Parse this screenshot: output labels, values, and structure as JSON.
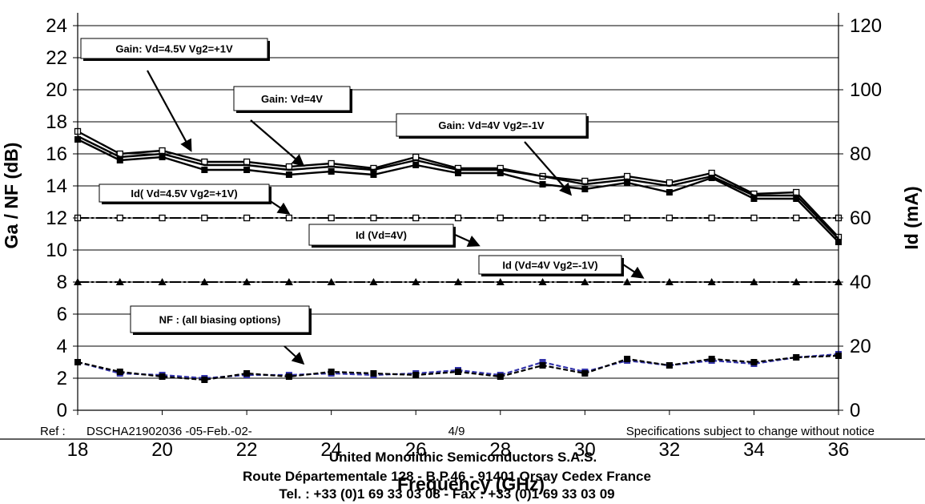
{
  "chart_data": {
    "type": "line",
    "xlabel": "Frequency (GHz)",
    "ylabel": "Ga / NF (dB)",
    "y2label": "Id (mA)",
    "xlim": [
      18,
      36
    ],
    "ylim": [
      0,
      24
    ],
    "y2lim": [
      0,
      120
    ],
    "x_ticks": [
      "18",
      "20",
      "22",
      "24",
      "26",
      "28",
      "30",
      "32",
      "34",
      "36"
    ],
    "y_ticks": [
      "0",
      "2",
      "4",
      "6",
      "8",
      "10",
      "12",
      "14",
      "16",
      "18",
      "20",
      "22",
      "24"
    ],
    "y2_ticks": [
      "0",
      "20",
      "40",
      "60",
      "80",
      "100",
      "120"
    ],
    "grid": "horizontal",
    "x": [
      18,
      19,
      20,
      21,
      22,
      23,
      24,
      25,
      26,
      27,
      28,
      29,
      30,
      31,
      32,
      33,
      34,
      35,
      36
    ],
    "series": [
      {
        "axis": "left",
        "color": "#000000",
        "marker": "open-square",
        "values": [
          17.4,
          16.0,
          16.2,
          15.5,
          15.5,
          15.2,
          15.4,
          15.1,
          15.8,
          15.1,
          15.1,
          14.6,
          14.3,
          14.6,
          14.2,
          14.8,
          13.5,
          13.6,
          10.8
        ]
      },
      {
        "axis": "left",
        "color": "#000000",
        "marker": "none",
        "values": [
          17.1,
          15.8,
          16.0,
          15.3,
          15.3,
          15.0,
          15.2,
          15.0,
          15.6,
          15.0,
          15.0,
          14.6,
          14.1,
          14.4,
          14.0,
          14.6,
          13.4,
          13.4,
          10.7
        ]
      },
      {
        "axis": "left",
        "color": "#000000",
        "marker": "filled-square",
        "values": [
          16.9,
          15.6,
          15.8,
          15.0,
          15.0,
          14.7,
          14.9,
          14.7,
          15.3,
          14.8,
          14.8,
          14.1,
          13.8,
          14.2,
          13.6,
          14.5,
          13.2,
          13.2,
          10.5
        ]
      },
      {
        "axis": "right",
        "color": "#000000",
        "marker": "open-square",
        "values": [
          60,
          60,
          60,
          60,
          60,
          60,
          60,
          60,
          60,
          60,
          60,
          60,
          60,
          60,
          60,
          60,
          60,
          60,
          60
        ]
      },
      {
        "axis": "right",
        "color": "#000000",
        "marker": "filled-triangle",
        "values": [
          40,
          40,
          40,
          40,
          40,
          40,
          40,
          40,
          40,
          40,
          40,
          40,
          40,
          40,
          40,
          40,
          40,
          40,
          40
        ]
      },
      {
        "axis": "left",
        "color": "#3333aa",
        "marker": "filled-square",
        "dashed": true,
        "values": [
          3.0,
          2.3,
          2.2,
          2.0,
          2.2,
          2.2,
          2.3,
          2.2,
          2.3,
          2.5,
          2.2,
          3.0,
          2.4,
          3.1,
          2.8,
          3.1,
          2.9,
          3.3,
          3.5
        ]
      },
      {
        "axis": "left",
        "color": "#000000",
        "marker": "filled-square",
        "dashed": true,
        "values": [
          3.0,
          2.4,
          2.1,
          1.9,
          2.3,
          2.1,
          2.4,
          2.3,
          2.2,
          2.4,
          2.1,
          2.8,
          2.3,
          3.2,
          2.8,
          3.2,
          3.0,
          3.3,
          3.4
        ]
      }
    ],
    "annotations": [
      "Gain:  Vd=4.5V Vg2=+1V",
      "Gain: Vd=4V",
      "Gain:  Vd=4V Vg2=-1V",
      "Id( Vd=4.5V Vg2=+1V)",
      "Id (Vd=4V)",
      "Id (Vd=4V Vg2=-1V)",
      "NF : (all biasing options)"
    ]
  },
  "footer": {
    "ref_label": "Ref :",
    "ref_code": "DSCHA21902036 -05-Feb.-02-",
    "page": "4/9",
    "notice": "Specifications subject to change without notice",
    "company": "United Monolithic Semiconductors S.A.S.",
    "address": "Route Départementale 128 - B.P.46 - 91401 Orsay Cedex France",
    "phone": "Tel. : +33 (0)1 69 33 03 08 - Fax : +33 (0)1 69 33 03 09"
  }
}
